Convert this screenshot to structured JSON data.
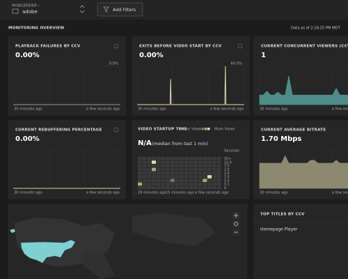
{
  "header": {
    "org": "MOBILERIDER ›",
    "account": "adobe",
    "filter_button": "Add Filters"
  },
  "section": {
    "title": "MONITORING OVERVIEW",
    "timestamp": "Data as of 2:18:25 PM MDT"
  },
  "panels": [
    {
      "title": "PLAYBACK FAILURES BY CCV",
      "value": "0.00%",
      "chart": {
        "type": "line",
        "top_label": "0.0%",
        "color": "#9a9a8a",
        "ylim": [
          0,
          1
        ],
        "values": [
          0,
          0,
          0,
          0,
          0,
          0,
          0,
          0,
          0,
          0,
          0,
          0,
          0,
          0,
          0,
          0,
          0,
          0,
          0,
          0,
          0,
          0,
          0,
          0,
          0,
          0,
          0,
          0,
          0,
          0
        ],
        "x_labels": [
          "30 minutes ago",
          "a few seconds ago"
        ]
      }
    },
    {
      "title": "EXITS BEFORE VIDEO START BY CCV",
      "value": "0.00%",
      "chart": {
        "type": "line",
        "top_label": "60.0%",
        "color": "#e2ddb0",
        "ylim": [
          0,
          60
        ],
        "values": [
          0,
          0,
          0,
          0,
          0,
          0,
          0,
          0,
          0,
          40,
          0,
          0,
          0,
          0,
          0,
          0,
          0,
          0,
          0,
          0,
          0,
          0,
          0,
          0,
          60,
          0,
          0,
          0,
          0,
          0
        ],
        "x_labels": [
          "30 minutes ago",
          "a few seconds ago"
        ]
      }
    },
    {
      "title": "CURRENT CONCURRENT VIEWERS (CCV)",
      "value": "1",
      "chart": {
        "type": "area",
        "color": "#4e8c88",
        "ylim": [
          0,
          4
        ],
        "values": [
          1,
          1,
          1.4,
          1,
          1,
          1.3,
          1,
          1,
          3,
          1,
          1,
          1,
          1,
          1,
          1,
          1,
          1,
          1,
          1,
          1,
          1,
          1.7,
          1,
          1,
          1,
          1,
          1,
          1,
          1,
          1.6
        ],
        "x_labels": [
          "30 minutes ago",
          "a few seconds ago"
        ]
      }
    },
    {
      "title": "CURRENT REBUFFERING PERCENTAGE",
      "value": "0.00%",
      "chart": {
        "type": "line",
        "color": "#d8d3a8",
        "ylim": [
          0,
          1
        ],
        "values": [
          0,
          0,
          0,
          0,
          0,
          0,
          0,
          0,
          0,
          0,
          0,
          0,
          0,
          0,
          0,
          0,
          0,
          0,
          0,
          0,
          0,
          0,
          0,
          0,
          0,
          0,
          0,
          0,
          0,
          0
        ],
        "x_labels": [
          "30 minutes ago",
          "a few seconds ago"
        ]
      }
    },
    {
      "title": "CURRENT AVERAGE BITRATE",
      "value": "1.70 Mbps",
      "chart": {
        "type": "area",
        "color": "#8c8970",
        "ylim": [
          0,
          2.6
        ],
        "values": [
          1.7,
          1.7,
          1.7,
          1.7,
          1.7,
          1.7,
          1.7,
          2.2,
          1.7,
          1.7,
          1.7,
          1.7,
          1.7,
          1.7,
          1.9,
          1.9,
          1.7,
          1.7,
          1.7,
          1.7,
          1.7,
          1.9,
          1.7,
          1.7,
          1.7,
          1.7,
          1.7,
          1.7,
          1.7,
          1.7
        ],
        "x_labels": [
          "30 minutes ago",
          "a few seconds ago"
        ]
      }
    }
  ],
  "startup": {
    "title": "VIDEO STARTUP TIME",
    "legend": [
      "Fewer Views",
      "More Views"
    ],
    "value": "N/A",
    "note": "(median from last 1 min)",
    "y_title": "Seconds",
    "y_labels": [
      "10+",
      "10.0",
      "3.5",
      "2.5",
      "2.0",
      "1.0",
      "0.5",
      "0.1",
      "0"
    ],
    "x_labels": [
      "29 minutes ago",
      "15 minutes ago",
      "a few seconds ago"
    ],
    "cells": [
      {
        "col": 3,
        "row": 1,
        "level": 3
      },
      {
        "col": 3,
        "row": 3,
        "level": 2
      },
      {
        "col": 0,
        "row": 7,
        "level": 2
      },
      {
        "col": 7,
        "row": 6,
        "level": 1
      },
      {
        "col": 14,
        "row": 6,
        "level": 2
      },
      {
        "col": 15,
        "row": 5,
        "level": 3
      }
    ]
  },
  "top_titles": {
    "title": "TOP TITLES BY CCV",
    "rows": [
      "Homepage Player"
    ]
  }
}
